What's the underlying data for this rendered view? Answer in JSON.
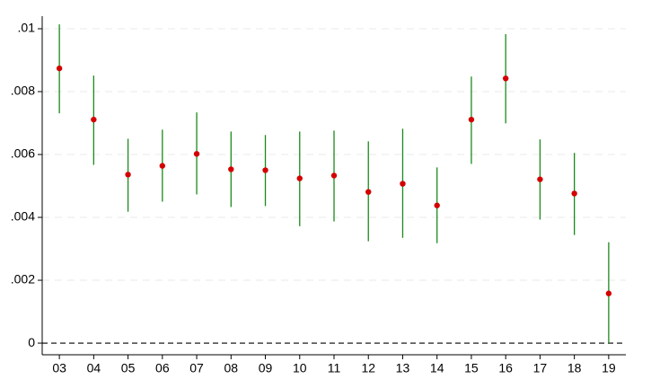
{
  "chart_data": {
    "type": "errorbar",
    "categories": [
      "03",
      "04",
      "05",
      "06",
      "07",
      "08",
      "09",
      "10",
      "11",
      "12",
      "13",
      "14",
      "15",
      "16",
      "17",
      "18",
      "19"
    ],
    "values": [
      0.00874,
      0.00711,
      0.00536,
      0.00564,
      0.00602,
      0.00553,
      0.0055,
      0.00524,
      0.00533,
      0.00481,
      0.00507,
      0.00438,
      0.00711,
      0.00842,
      0.00521,
      0.00476,
      0.00158
    ],
    "lower": [
      0.00731,
      0.00567,
      0.00418,
      0.0045,
      0.00473,
      0.00433,
      0.00436,
      0.00372,
      0.00387,
      0.00324,
      0.00335,
      0.00318,
      0.0057,
      0.00699,
      0.00393,
      0.00344,
      0.0
    ],
    "upper": [
      0.01014,
      0.00851,
      0.0065,
      0.00679,
      0.00734,
      0.00673,
      0.00662,
      0.00673,
      0.00676,
      0.00642,
      0.00682,
      0.00559,
      0.00848,
      0.00983,
      0.00648,
      0.00605,
      0.00321
    ],
    "color": "#d40000",
    "bar_color": "#1a8a1a",
    "ylim": [
      -0.00037,
      0.0104
    ],
    "yticks": [
      0,
      {
        "value": 0.002,
        "label": ".002"
      },
      {
        "value": 0.004,
        "label": ".004"
      },
      {
        "value": 0.006,
        "label": ".006"
      },
      {
        "value": 0.008,
        "label": ".008"
      },
      {
        "value": 0.01,
        "label": ".01"
      }
    ],
    "grid": true
  }
}
